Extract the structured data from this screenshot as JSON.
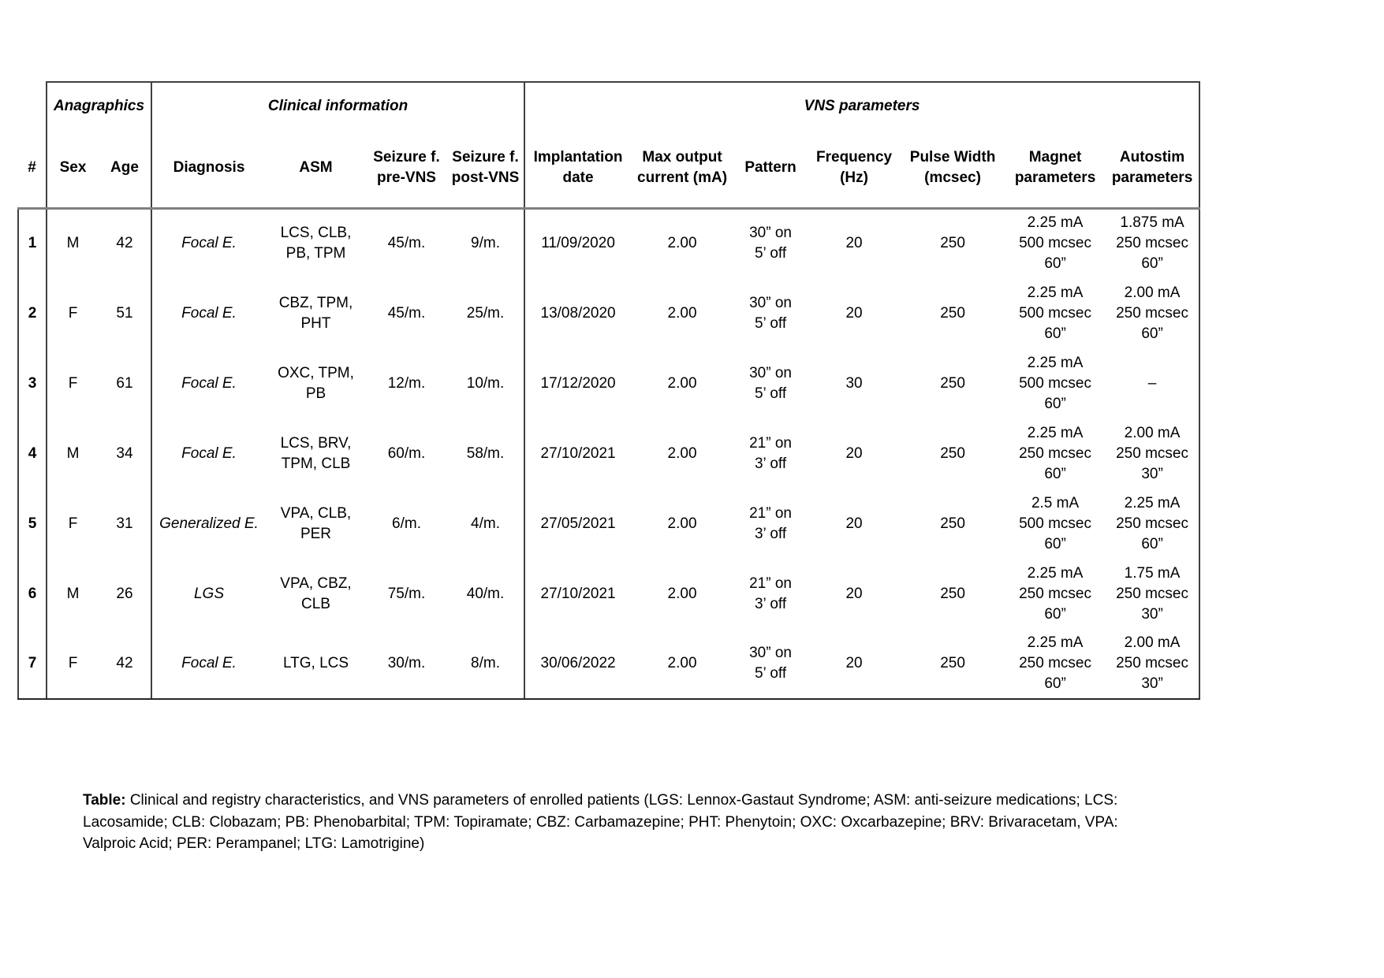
{
  "table": {
    "groups": [
      {
        "label": "Anagraphics"
      },
      {
        "label": "Clinical information"
      },
      {
        "label": "VNS parameters"
      }
    ],
    "columns": [
      "#",
      "Sex",
      "Age",
      "Diagnosis",
      "ASM",
      "Seizure f.\npre-VNS",
      "Seizure f.\npost-VNS",
      "Implantation\ndate",
      "Max output\ncurrent (mA)",
      "Pattern",
      "Frequency\n(Hz)",
      "Pulse Width\n(mcsec)",
      "Magnet\nparameters",
      "Autostim\nparameters"
    ],
    "rows": [
      [
        "1",
        "M",
        "42",
        "Focal E.",
        "LCS, CLB,\nPB, TPM",
        "45/m.",
        "9/m.",
        "11/09/2020",
        "2.00",
        "30” on\n5’ off",
        "20",
        "250",
        "2.25 mA\n500 mcsec\n60”",
        "1.875 mA\n250 mcsec\n60”"
      ],
      [
        "2",
        "F",
        "51",
        "Focal E.",
        "CBZ, TPM,\nPHT",
        "45/m.",
        "25/m.",
        "13/08/2020",
        "2.00",
        "30” on\n5’ off",
        "20",
        "250",
        "2.25 mA\n500 mcsec\n60”",
        "2.00 mA\n250 mcsec\n60”"
      ],
      [
        "3",
        "F",
        "61",
        "Focal E.",
        "OXC, TPM,\nPB",
        "12/m.",
        "10/m.",
        "17/12/2020",
        "2.00",
        "30” on\n5’ off",
        "30",
        "250",
        "2.25 mA\n500 mcsec\n60”",
        "–"
      ],
      [
        "4",
        "M",
        "34",
        "Focal E.",
        "LCS, BRV,\nTPM, CLB",
        "60/m.",
        "58/m.",
        "27/10/2021",
        "2.00",
        "21” on\n3’ off",
        "20",
        "250",
        "2.25 mA\n250 mcsec\n60”",
        "2.00 mA\n250 mcsec\n30”"
      ],
      [
        "5",
        "F",
        "31",
        "Generalized E.",
        "VPA, CLB,\nPER",
        "6/m.",
        "4/m.",
        "27/05/2021",
        "2.00",
        "21” on\n3’ off",
        "20",
        "250",
        "2.5 mA\n500 mcsec\n60”",
        "2.25 mA\n250 mcsec\n60”"
      ],
      [
        "6",
        "M",
        "26",
        "LGS",
        "VPA, CBZ,\nCLB",
        "75/m.",
        "40/m.",
        "27/10/2021",
        "2.00",
        "21” on\n3’ off",
        "20",
        "250",
        "2.25 mA\n250 mcsec\n60”",
        "1.75 mA\n250 mcsec\n30”"
      ],
      [
        "7",
        "F",
        "42",
        "Focal E.",
        "LTG, LCS",
        "30/m.",
        "8/m.",
        "30/06/2022",
        "2.00",
        "30” on\n5’ off",
        "20",
        "250",
        "2.25 mA\n250 mcsec\n60”",
        "2.00 mA\n250 mcsec\n30”"
      ]
    ]
  },
  "caption": {
    "label": "Table:",
    "text": " Clinical and registry characteristics, and VNS parameters of enrolled patients (LGS: Lennox-Gastaut Syndrome; ASM: anti-seizure medications; LCS: Lacosamide; CLB: Clobazam; PB: Phenobarbital; TPM: Topiramate; CBZ: Carbamazepine; PHT: Phenytoin; OXC: Oxcarbazepine; BRV: Brivaracetam, VPA: Valproic Acid; PER: Perampanel; LTG: Lamotrigine)"
  }
}
